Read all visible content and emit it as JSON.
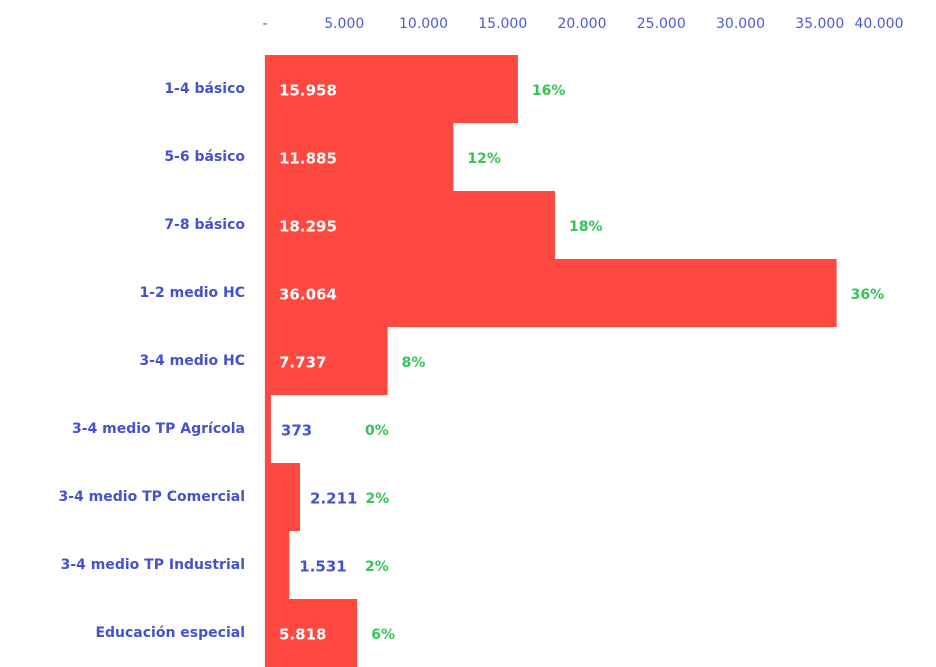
{
  "chart_data": {
    "type": "hbar",
    "categories": [
      "1-4 básico",
      "5-6 básico",
      "7-8 básico",
      "1-2 medio HC",
      "3-4 medio HC",
      "3-4 medio TP Agrícola",
      "3-4 medio TP Comercial",
      "3-4 medio TP Industrial",
      "Educación especial"
    ],
    "values": [
      15958,
      11885,
      18295,
      36064,
      7737,
      373,
      2211,
      1531,
      5818
    ],
    "value_labels": [
      "15.958",
      "11.885",
      "18.295",
      "36.064",
      "7.737",
      "373",
      "2.211",
      "1.531",
      "5.818"
    ],
    "percent_values": [
      16,
      12,
      18,
      36,
      8,
      0,
      2,
      2,
      6
    ],
    "percent_labels": [
      "16%",
      "12%",
      "18%",
      "36%",
      "8%",
      "0%",
      "2%",
      "2%",
      "6%"
    ],
    "color": "#ff4840",
    "xlim": [
      0,
      40000
    ],
    "xticks": [
      {
        "value": 0,
        "label": "-"
      },
      {
        "value": 5000,
        "label": "5.000"
      },
      {
        "value": 10000,
        "label": "10.000"
      },
      {
        "value": 15000,
        "label": "15.000"
      },
      {
        "value": 20000,
        "label": "20.000"
      },
      {
        "value": 25000,
        "label": "25.000"
      },
      {
        "value": 30000,
        "label": "30.000"
      },
      {
        "value": 35000,
        "label": "35.000"
      },
      {
        "value": 40000,
        "label": "40.000"
      }
    ]
  }
}
